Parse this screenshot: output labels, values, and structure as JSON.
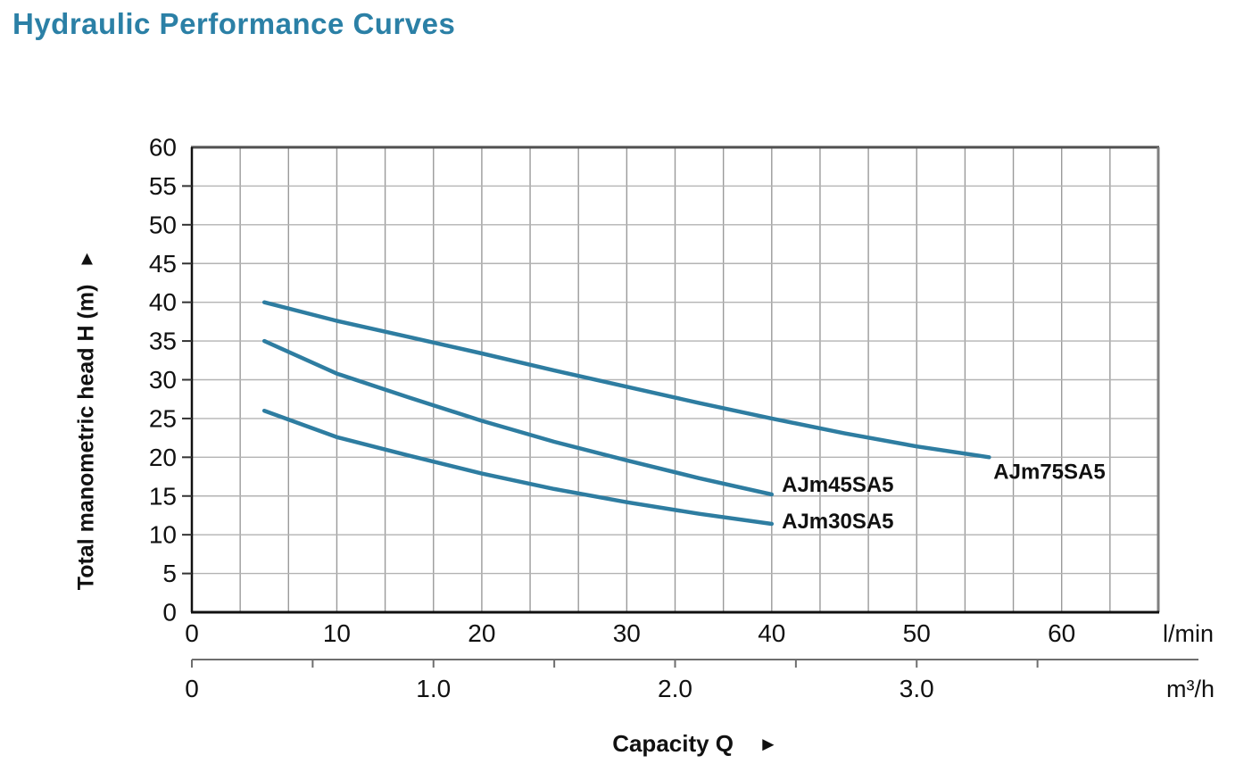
{
  "page": {
    "title": "Hydraulic Performance Curves",
    "title_color": "#2b80a6"
  },
  "chart_data": {
    "type": "line",
    "title": "Hydraulic Performance Curves",
    "xlabel": "Capacity Q",
    "xlabel_arrow": "►",
    "ylabel": "Total manometric head H (m)",
    "ylabel_arrow": "▲",
    "grid": true,
    "legend_position": "inline-labels-at-curve-ends",
    "y_axis": {
      "min": 0,
      "max": 60,
      "tick_step": 5,
      "ticks": [
        0,
        5,
        10,
        15,
        20,
        25,
        30,
        35,
        40,
        45,
        50,
        55,
        60
      ]
    },
    "x_axis_scales": [
      {
        "unit": "l/min",
        "min": 0,
        "max": 66.67,
        "ticks": [
          0,
          10,
          20,
          30,
          40,
          50,
          60
        ]
      },
      {
        "unit": "m³/h",
        "min": 0,
        "max": 4.0,
        "tick_marks": [
          0,
          0.5,
          1.0,
          1.5,
          2.0,
          2.5,
          3.0,
          3.5
        ],
        "tick_labels": [
          {
            "value": 0,
            "label": "0"
          },
          {
            "value": 1.0,
            "label": "1.0"
          },
          {
            "value": 2.0,
            "label": "2.0"
          },
          {
            "value": 3.0,
            "label": "3.0"
          }
        ]
      }
    ],
    "grid_x_step_m3h": 0.2,
    "grid_y_step_m": 5,
    "series": [
      {
        "name": "AJm75SA5",
        "color": "#2e7da1",
        "x_unit": "l/min",
        "points": [
          [
            5,
            40
          ],
          [
            10,
            37.6
          ],
          [
            15,
            35.5
          ],
          [
            20,
            33.4
          ],
          [
            25,
            31.2
          ],
          [
            30,
            29.1
          ],
          [
            35,
            27.0
          ],
          [
            40,
            25.0
          ],
          [
            45,
            23.1
          ],
          [
            50,
            21.4
          ],
          [
            55,
            20.0
          ]
        ],
        "label_anchor": {
          "q": 55.3,
          "h": 18.1
        }
      },
      {
        "name": "AJm45SA5",
        "color": "#2e7da1",
        "x_unit": "l/min",
        "points": [
          [
            5,
            35
          ],
          [
            10,
            30.8
          ],
          [
            15,
            27.7
          ],
          [
            20,
            24.7
          ],
          [
            25,
            22.0
          ],
          [
            30,
            19.6
          ],
          [
            35,
            17.3
          ],
          [
            40,
            15.2
          ]
        ],
        "label_anchor": {
          "q": 40.7,
          "h": 16.4
        }
      },
      {
        "name": "AJm30SA5",
        "color": "#2e7da1",
        "x_unit": "l/min",
        "points": [
          [
            5,
            26
          ],
          [
            10,
            22.6
          ],
          [
            15,
            20.2
          ],
          [
            20,
            17.9
          ],
          [
            25,
            15.9
          ],
          [
            30,
            14.2
          ],
          [
            35,
            12.7
          ],
          [
            40,
            11.4
          ]
        ],
        "label_anchor": {
          "q": 40.7,
          "h": 11.7
        }
      }
    ],
    "colors": {
      "curve": "#2e7da1",
      "grid_vertical": "#9a9a9a",
      "grid_horizontal": "#b3b3b3",
      "border_top": "#4f4f4f",
      "border_right": "#7f7f7f",
      "border_left": "#111111",
      "border_bottom": "#111111",
      "secondary_axis_line": "#6e6e6e",
      "tick_text": "#111111"
    }
  }
}
